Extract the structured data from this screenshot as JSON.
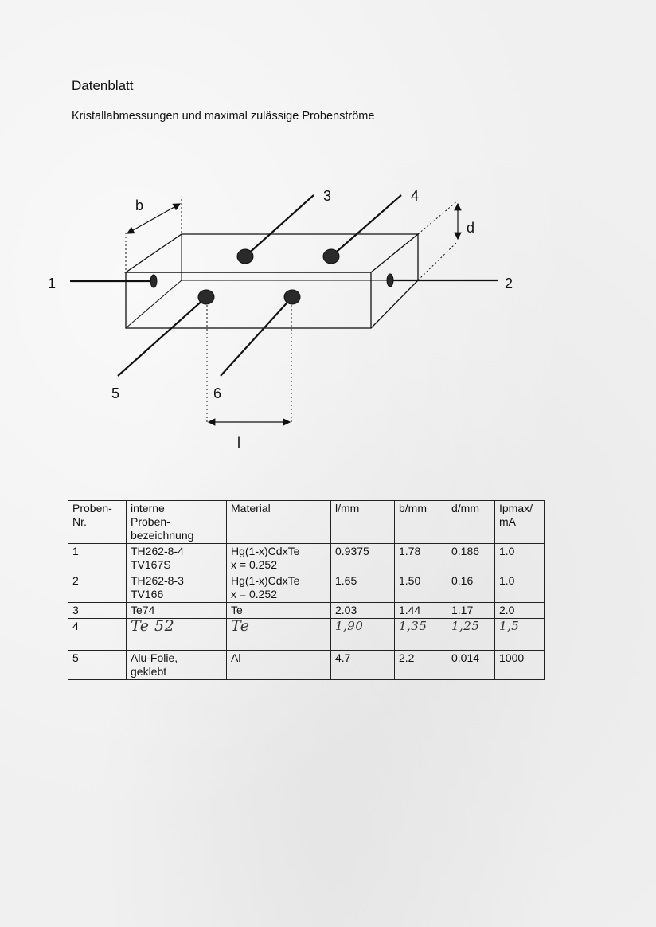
{
  "document": {
    "title": "Datenblatt",
    "subtitle": "Kristallabmessungen und maximal zulässige Probenströme"
  },
  "diagram": {
    "labels": {
      "b": "b",
      "d": "d",
      "l": "l",
      "contact_1": "1",
      "contact_2": "2",
      "contact_3": "3",
      "contact_4": "4",
      "contact_5": "5",
      "contact_6": "6"
    }
  },
  "table": {
    "headers": [
      "Proben-\nNr.",
      "interne\nProben-\nbezeichnung",
      "Material",
      "l/mm",
      "b/mm",
      "d/mm",
      "Ipmax/\nmA"
    ],
    "rows": [
      [
        "1",
        "TH262-8-4\nTV167S",
        "Hg(1-x)CdxTe\nx = 0.252",
        "0.9375",
        "1.78",
        "0.186",
        "1.0"
      ],
      [
        "2",
        "TH262-8-3\nTV166",
        "Hg(1-x)CdxTe\nx = 0.252",
        "1.65",
        "1.50",
        "0.16",
        "1.0"
      ],
      [
        "3",
        "Te74",
        "Te",
        "2.03",
        "1.44",
        "1.17",
        "2.0"
      ],
      [
        "4",
        "Te 52",
        "Te",
        "1,90",
        "1,35",
        "1,25",
        "1,5"
      ],
      [
        "5",
        "Alu-Folie,\ngeklebt",
        "Al",
        "4.7",
        "2.2",
        "0.014",
        "1000"
      ]
    ]
  }
}
